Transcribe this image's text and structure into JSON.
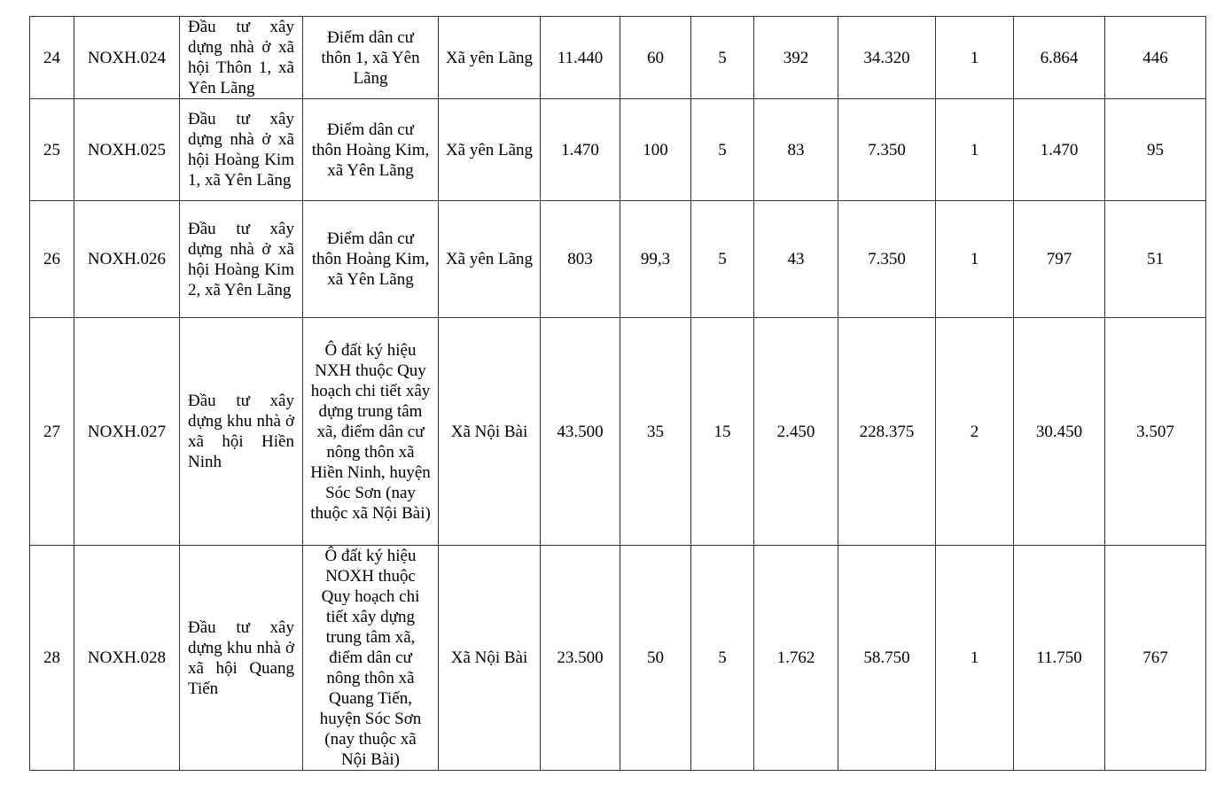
{
  "rows": [
    {
      "stt": "24",
      "code": "NOXH.024",
      "name": "Đầu tư xây dựng nhà ở xã hội Thôn 1, xã Yên Lãng",
      "location": "Điểm dân cư thôn 1, xã Yên Lãng",
      "commune": "Xã yên Lãng",
      "c1": "11.440",
      "c2": "60",
      "c3": "5",
      "c4": "392",
      "c5": "34.320",
      "c6": "1",
      "c7": "6.864",
      "c8": "446"
    },
    {
      "stt": "25",
      "code": "NOXH.025",
      "name": "Đầu tư xây dựng nhà ở xã hội Hoàng Kim 1, xã Yên Lãng",
      "location": "Điểm dân cư thôn Hoàng Kim, xã Yên Lãng",
      "commune": "Xã yên Lãng",
      "c1": "1.470",
      "c2": "100",
      "c3": "5",
      "c4": "83",
      "c5": "7.350",
      "c6": "1",
      "c7": "1.470",
      "c8": "95"
    },
    {
      "stt": "26",
      "code": "NOXH.026",
      "name": "Đầu tư xây dựng nhà ở xã hội Hoàng Kim 2, xã Yên Lãng",
      "location": "Điểm dân cư thôn Hoàng Kim, xã Yên Lãng",
      "commune": "Xã yên Lãng",
      "c1": "803",
      "c2": "99,3",
      "c3": "5",
      "c4": "43",
      "c5": "7.350",
      "c6": "1",
      "c7": "797",
      "c8": "51"
    },
    {
      "stt": "27",
      "code": "NOXH.027",
      "name": "Đầu tư xây dựng khu nhà ở xã hội Hiền Ninh",
      "location": "Ô đất ký hiệu NXH thuộc Quy hoạch chi tiết xây dựng trung tâm xã, điểm dân cư nông thôn xã Hiền Ninh, huyện Sóc Sơn (nay thuộc xã Nội Bài)",
      "commune": "Xã Nội Bài",
      "c1": "43.500",
      "c2": "35",
      "c3": "15",
      "c4": "2.450",
      "c5": "228.375",
      "c6": "2",
      "c7": "30.450",
      "c8": "3.507"
    },
    {
      "stt": "28",
      "code": "NOXH.028",
      "name": "Đầu tư xây dựng khu nhà ở xã hội Quang Tiến",
      "location": "Ô đất ký hiệu NOXH thuộc Quy hoạch chi tiết xây dựng trung tâm xã, điểm dân cư nông thôn xã Quang Tiến, huyện Sóc Sơn (nay thuộc xã Nội Bài)",
      "commune": "Xã Nội Bài",
      "c1": "23.500",
      "c2": "50",
      "c3": "5",
      "c4": "1.762",
      "c5": "58.750",
      "c6": "1",
      "c7": "11.750",
      "c8": "767"
    }
  ]
}
